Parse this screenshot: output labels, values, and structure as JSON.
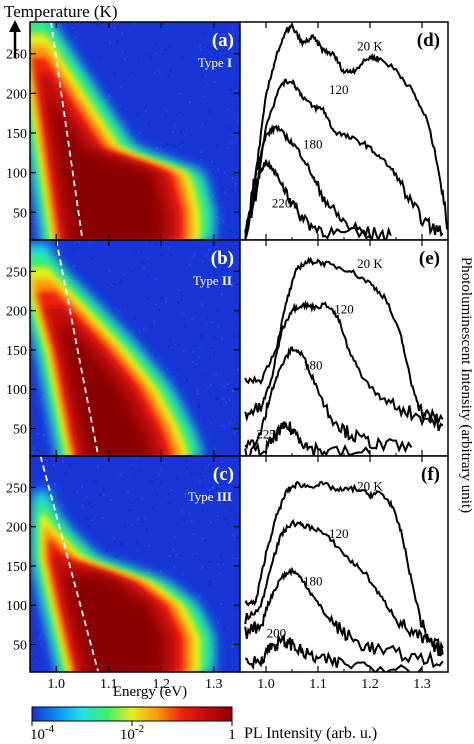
{
  "figure": {
    "y_title": "Temperature (K)",
    "x_title": "Energy (eV)",
    "right_title": "Photoluminescent Intensity (arbitrary unit)",
    "colorbar": {
      "title": "PL Intensity (arb. u.)",
      "ticks": [
        {
          "base": "10",
          "exp": "-4",
          "value": 0.0001
        },
        {
          "base": "10",
          "exp": "-2",
          "value": 0.01
        },
        {
          "base": "1",
          "exp": "",
          "value": 1
        }
      ],
      "colors": [
        "#1a2fd6",
        "#0a8ff5",
        "#1ee3e8",
        "#3df06a",
        "#e3ee1c",
        "#ff9a0a",
        "#f0200c",
        "#c40a0a",
        "#8a0000"
      ]
    }
  },
  "chart_data": [
    {
      "type": "heatmap",
      "panel_label": "(a)",
      "sample_label": {
        "prefix": "Type",
        "roman": "I"
      },
      "xlim": [
        0.95,
        1.35
      ],
      "ylim": [
        15,
        290
      ],
      "xticks": [
        "1.0",
        "1.1",
        "1.2",
        "1.3"
      ],
      "yticks": [
        "50",
        "100",
        "150",
        "200",
        "250"
      ],
      "dashed_guide": [
        [
          0.99,
          290
        ],
        [
          1.05,
          15
        ]
      ],
      "peak_energy_eV": [
        {
          "T": 15,
          "E": 1.05
        },
        {
          "T": 150,
          "E": 1.02
        },
        {
          "T": 280,
          "E": 0.99
        }
      ],
      "high_energy_edge_eV": [
        {
          "T": 15,
          "E": 1.29
        },
        {
          "T": 50,
          "E": 1.29
        },
        {
          "T": 100,
          "E": 1.27
        },
        {
          "T": 130,
          "E": 1.14
        },
        {
          "T": 180,
          "E": 1.09
        },
        {
          "T": 220,
          "E": 1.05
        },
        {
          "T": 260,
          "E": 1.01
        },
        {
          "T": 290,
          "E": 0.98
        }
      ]
    },
    {
      "type": "heatmap",
      "panel_label": "(b)",
      "sample_label": {
        "prefix": "Type",
        "roman": "II"
      },
      "xlim": [
        0.95,
        1.35
      ],
      "ylim": [
        15,
        290
      ],
      "xticks": [
        "1.0",
        "1.1",
        "1.2",
        "1.3"
      ],
      "yticks": [
        "50",
        "100",
        "150",
        "200",
        "250"
      ],
      "dashed_guide": [
        [
          1.0,
          290
        ],
        [
          1.08,
          15
        ]
      ],
      "peak_energy_eV": [
        {
          "T": 15,
          "E": 1.08
        },
        {
          "T": 150,
          "E": 1.04
        },
        {
          "T": 220,
          "E": 1.01
        }
      ],
      "high_energy_edge_eV": [
        {
          "T": 15,
          "E": 1.27
        },
        {
          "T": 50,
          "E": 1.25
        },
        {
          "T": 100,
          "E": 1.21
        },
        {
          "T": 150,
          "E": 1.15
        },
        {
          "T": 200,
          "E": 1.08
        },
        {
          "T": 240,
          "E": 1.02
        },
        {
          "T": 270,
          "E": 0.98
        }
      ]
    },
    {
      "type": "heatmap",
      "panel_label": "(c)",
      "sample_label": {
        "prefix": "Type",
        "roman": "III"
      },
      "xlim": [
        0.95,
        1.35
      ],
      "ylim": [
        15,
        290
      ],
      "xticks": [
        "1.0",
        "1.1",
        "1.2",
        "1.3"
      ],
      "yticks": [
        "50",
        "100",
        "150",
        "200",
        "250"
      ],
      "dashed_guide": [
        [
          0.97,
          290
        ],
        [
          1.08,
          15
        ]
      ],
      "peak_energy_eV": [
        {
          "T": 15,
          "E": 1.08
        },
        {
          "T": 100,
          "E": 1.05
        },
        {
          "T": 160,
          "E": 1.03
        }
      ],
      "high_energy_edge_eV": [
        {
          "T": 15,
          "E": 1.29
        },
        {
          "T": 60,
          "E": 1.29
        },
        {
          "T": 100,
          "E": 1.26
        },
        {
          "T": 130,
          "E": 1.2
        },
        {
          "T": 160,
          "E": 1.07
        },
        {
          "T": 200,
          "E": 1.01
        },
        {
          "T": 230,
          "E": 0.98
        }
      ]
    },
    {
      "type": "line",
      "panel_label": "(d)",
      "xlim": [
        0.95,
        1.35
      ],
      "ylim": [
        0,
        1
      ],
      "xticks": [
        "1.0",
        "1.1",
        "1.2",
        "1.3"
      ],
      "series": [
        {
          "name": "20 K",
          "label": "20 K",
          "label_at": [
            1.2,
            0.87
          ],
          "points": [
            [
              0.96,
              0.02
            ],
            [
              0.98,
              0.3
            ],
            [
              1.0,
              0.66
            ],
            [
              1.02,
              0.85
            ],
            [
              1.04,
              0.96
            ],
            [
              1.05,
              0.98
            ],
            [
              1.07,
              0.9
            ],
            [
              1.09,
              0.93
            ],
            [
              1.11,
              0.87
            ],
            [
              1.13,
              0.85
            ],
            [
              1.15,
              0.77
            ],
            [
              1.17,
              0.78
            ],
            [
              1.2,
              0.84
            ],
            [
              1.22,
              0.83
            ],
            [
              1.25,
              0.78
            ],
            [
              1.28,
              0.69
            ],
            [
              1.31,
              0.55
            ],
            [
              1.33,
              0.35
            ],
            [
              1.35,
              0.05
            ]
          ]
        },
        {
          "name": "120",
          "label": "120",
          "label_at": [
            1.14,
            0.67
          ],
          "points": [
            [
              0.96,
              0.02
            ],
            [
              0.98,
              0.2
            ],
            [
              1.0,
              0.53
            ],
            [
              1.03,
              0.72
            ],
            [
              1.05,
              0.73
            ],
            [
              1.07,
              0.66
            ],
            [
              1.09,
              0.61
            ],
            [
              1.11,
              0.6
            ],
            [
              1.13,
              0.5
            ],
            [
              1.16,
              0.47
            ],
            [
              1.19,
              0.44
            ],
            [
              1.22,
              0.38
            ],
            [
              1.25,
              0.3
            ],
            [
              1.28,
              0.16
            ],
            [
              1.31,
              0.07
            ],
            [
              1.34,
              0.03
            ]
          ]
        },
        {
          "name": "180",
          "label": "180",
          "label_at": [
            1.09,
            0.42
          ],
          "points": [
            [
              0.96,
              0.02
            ],
            [
              0.98,
              0.3
            ],
            [
              1.0,
              0.48
            ],
            [
              1.02,
              0.52
            ],
            [
              1.04,
              0.47
            ],
            [
              1.06,
              0.42
            ],
            [
              1.08,
              0.34
            ],
            [
              1.1,
              0.24
            ],
            [
              1.13,
              0.13
            ],
            [
              1.16,
              0.06
            ],
            [
              1.2,
              0.03
            ],
            [
              1.24,
              0.02
            ]
          ]
        },
        {
          "name": "220",
          "label": "220",
          "label_at": [
            1.03,
            0.15
          ],
          "points": [
            [
              0.96,
              0.02
            ],
            [
              0.98,
              0.23
            ],
            [
              0.99,
              0.32
            ],
            [
              1.0,
              0.36
            ],
            [
              1.02,
              0.3
            ],
            [
              1.04,
              0.22
            ],
            [
              1.06,
              0.13
            ],
            [
              1.09,
              0.06
            ],
            [
              1.13,
              0.03
            ],
            [
              1.2,
              0.02
            ]
          ]
        }
      ]
    },
    {
      "type": "line",
      "panel_label": "(e)",
      "xlim": [
        0.95,
        1.35
      ],
      "ylim": [
        0,
        1
      ],
      "xticks": [
        "1.0",
        "1.1",
        "1.2",
        "1.3"
      ],
      "series": [
        {
          "name": "20 K",
          "label": "20 K",
          "label_at": [
            1.2,
            0.87
          ],
          "points": [
            [
              0.96,
              0.35
            ],
            [
              0.99,
              0.35
            ],
            [
              1.02,
              0.5
            ],
            [
              1.04,
              0.72
            ],
            [
              1.06,
              0.87
            ],
            [
              1.08,
              0.9
            ],
            [
              1.1,
              0.9
            ],
            [
              1.13,
              0.88
            ],
            [
              1.16,
              0.86
            ],
            [
              1.2,
              0.8
            ],
            [
              1.23,
              0.73
            ],
            [
              1.26,
              0.55
            ],
            [
              1.28,
              0.33
            ],
            [
              1.3,
              0.2
            ],
            [
              1.32,
              0.18
            ],
            [
              1.34,
              0.17
            ]
          ]
        },
        {
          "name": "120",
          "label": "120",
          "label_at": [
            1.15,
            0.66
          ],
          "points": [
            [
              0.96,
              0.2
            ],
            [
              0.99,
              0.22
            ],
            [
              1.01,
              0.35
            ],
            [
              1.03,
              0.58
            ],
            [
              1.05,
              0.68
            ],
            [
              1.07,
              0.7
            ],
            [
              1.09,
              0.69
            ],
            [
              1.12,
              0.7
            ],
            [
              1.14,
              0.63
            ],
            [
              1.16,
              0.48
            ],
            [
              1.19,
              0.35
            ],
            [
              1.22,
              0.27
            ],
            [
              1.26,
              0.22
            ],
            [
              1.3,
              0.18
            ],
            [
              1.34,
              0.14
            ]
          ]
        },
        {
          "name": "180",
          "label": "180",
          "label_at": [
            1.09,
            0.4
          ],
          "points": [
            [
              0.96,
              0.03
            ],
            [
              0.99,
              0.1
            ],
            [
              1.01,
              0.3
            ],
            [
              1.03,
              0.42
            ],
            [
              1.05,
              0.5
            ],
            [
              1.07,
              0.47
            ],
            [
              1.09,
              0.36
            ],
            [
              1.12,
              0.2
            ],
            [
              1.15,
              0.12
            ],
            [
              1.18,
              0.08
            ],
            [
              1.22,
              0.05
            ],
            [
              1.28,
              0.04
            ]
          ]
        },
        {
          "name": "225",
          "label": "225",
          "label_at": [
            1.0,
            0.08
          ],
          "points": [
            [
              0.96,
              0.01
            ],
            [
              1.0,
              0.03
            ],
            [
              1.02,
              0.1
            ],
            [
              1.04,
              0.14
            ],
            [
              1.06,
              0.1
            ],
            [
              1.08,
              0.04
            ],
            [
              1.12,
              0.02
            ],
            [
              1.2,
              0.01
            ]
          ]
        }
      ]
    },
    {
      "type": "line",
      "panel_label": "(f)",
      "xlim": [
        0.95,
        1.35
      ],
      "ylim": [
        0,
        1
      ],
      "xticks": [
        "1.0",
        "1.1",
        "1.2",
        "1.3"
      ],
      "series": [
        {
          "name": "20 K",
          "label": "20 K",
          "label_at": [
            1.2,
            0.84
          ],
          "points": [
            [
              0.96,
              0.32
            ],
            [
              0.98,
              0.32
            ],
            [
              1.0,
              0.55
            ],
            [
              1.02,
              0.72
            ],
            [
              1.04,
              0.84
            ],
            [
              1.06,
              0.87
            ],
            [
              1.08,
              0.86
            ],
            [
              1.11,
              0.87
            ],
            [
              1.14,
              0.84
            ],
            [
              1.17,
              0.85
            ],
            [
              1.2,
              0.82
            ],
            [
              1.22,
              0.83
            ],
            [
              1.24,
              0.78
            ],
            [
              1.26,
              0.65
            ],
            [
              1.28,
              0.42
            ],
            [
              1.3,
              0.22
            ],
            [
              1.32,
              0.12
            ],
            [
              1.34,
              0.08
            ]
          ]
        },
        {
          "name": "120",
          "label": "120",
          "label_at": [
            1.14,
            0.62
          ],
          "points": [
            [
              0.96,
              0.24
            ],
            [
              0.99,
              0.3
            ],
            [
              1.01,
              0.5
            ],
            [
              1.03,
              0.64
            ],
            [
              1.05,
              0.69
            ],
            [
              1.07,
              0.68
            ],
            [
              1.1,
              0.66
            ],
            [
              1.13,
              0.6
            ],
            [
              1.16,
              0.52
            ],
            [
              1.19,
              0.46
            ],
            [
              1.22,
              0.35
            ],
            [
              1.25,
              0.25
            ],
            [
              1.28,
              0.18
            ],
            [
              1.31,
              0.14
            ],
            [
              1.34,
              0.11
            ]
          ]
        },
        {
          "name": "180",
          "label": "180",
          "label_at": [
            1.09,
            0.4
          ],
          "points": [
            [
              0.96,
              0.18
            ],
            [
              0.99,
              0.22
            ],
            [
              1.01,
              0.35
            ],
            [
              1.03,
              0.44
            ],
            [
              1.05,
              0.47
            ],
            [
              1.07,
              0.43
            ],
            [
              1.09,
              0.35
            ],
            [
              1.12,
              0.25
            ],
            [
              1.15,
              0.18
            ],
            [
              1.18,
              0.13
            ],
            [
              1.22,
              0.1
            ],
            [
              1.28,
              0.07
            ],
            [
              1.34,
              0.05
            ]
          ]
        },
        {
          "name": "200",
          "label": "200",
          "label_at": [
            1.02,
            0.16
          ],
          "points": [
            [
              0.96,
              0.03
            ],
            [
              0.99,
              0.06
            ],
            [
              1.01,
              0.12
            ],
            [
              1.03,
              0.14
            ],
            [
              1.05,
              0.13
            ],
            [
              1.07,
              0.09
            ],
            [
              1.1,
              0.06
            ],
            [
              1.14,
              0.04
            ],
            [
              1.2,
              0.03
            ],
            [
              1.3,
              0.02
            ]
          ]
        }
      ]
    }
  ]
}
